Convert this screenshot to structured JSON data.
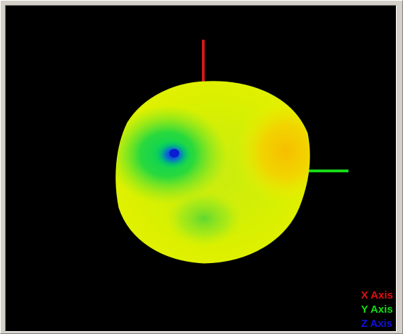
{
  "viewer": {
    "background_color": "#000000",
    "frame_color": "#d4d0c8"
  },
  "axes": {
    "x": {
      "color": "#d01818"
    },
    "y": {
      "color": "#18d818"
    }
  },
  "legend": {
    "items": [
      {
        "label": "X Axis",
        "color": "#e01010"
      },
      {
        "label": "Y Axis",
        "color": "#10e010"
      },
      {
        "label": "Z Axis",
        "color": "#1010e0"
      }
    ]
  },
  "sphere": {
    "colormap": [
      "#0a2fd8",
      "#00d84a",
      "#7fe61a",
      "#e8f000",
      "#f7c400"
    ]
  }
}
